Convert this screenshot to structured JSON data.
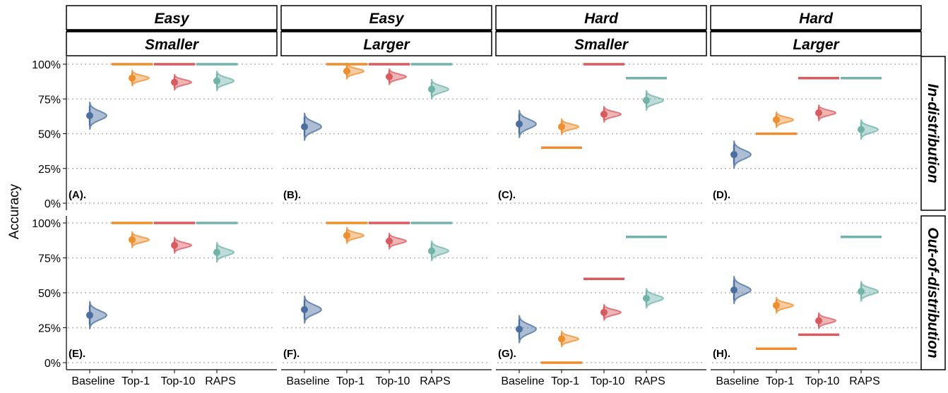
{
  "chart_data": {
    "type": "distribution",
    "ylabel": "Accuracy",
    "ylim": [
      0,
      100
    ],
    "yticks": [
      "0%",
      "25%",
      "50%",
      "75%",
      "100%"
    ],
    "categories": [
      "Baseline",
      "Top-1",
      "Top-10",
      "RAPS"
    ],
    "colors": {
      "Baseline": "#4a6fa0",
      "Top-1": "#ee8e2d",
      "Top-10": "#d95a5f",
      "RAPS": "#6fb3aa"
    },
    "columns": [
      {
        "top": "Easy",
        "bottom": "Smaller"
      },
      {
        "top": "Easy",
        "bottom": "Larger"
      },
      {
        "top": "Hard",
        "bottom": "Smaller"
      },
      {
        "top": "Hard",
        "bottom": "Larger"
      }
    ],
    "rows": [
      "In-distribution",
      "Out-of-distribution"
    ],
    "panels": [
      {
        "label": "(A).",
        "means": [
          63,
          90,
          87,
          88
        ],
        "bounds": [
          null,
          100,
          100,
          100
        ]
      },
      {
        "label": "(B).",
        "means": [
          55,
          95,
          91,
          82
        ],
        "bounds": [
          null,
          100,
          100,
          100
        ]
      },
      {
        "label": "(C).",
        "means": [
          57,
          55,
          64,
          74
        ],
        "bounds": [
          null,
          40,
          100,
          90
        ]
      },
      {
        "label": "(D).",
        "means": [
          35,
          60,
          65,
          53
        ],
        "bounds": [
          null,
          50,
          90,
          90
        ]
      },
      {
        "label": "(E).",
        "means": [
          34,
          88,
          84,
          79
        ],
        "bounds": [
          null,
          100,
          100,
          100
        ]
      },
      {
        "label": "(F).",
        "means": [
          38,
          91,
          87,
          80
        ],
        "bounds": [
          null,
          100,
          100,
          100
        ]
      },
      {
        "label": "(G).",
        "means": [
          24,
          17,
          36,
          46
        ],
        "bounds": [
          null,
          0,
          60,
          90
        ]
      },
      {
        "label": "(H).",
        "means": [
          52,
          41,
          30,
          51
        ],
        "bounds": [
          null,
          10,
          20,
          90
        ]
      }
    ]
  }
}
